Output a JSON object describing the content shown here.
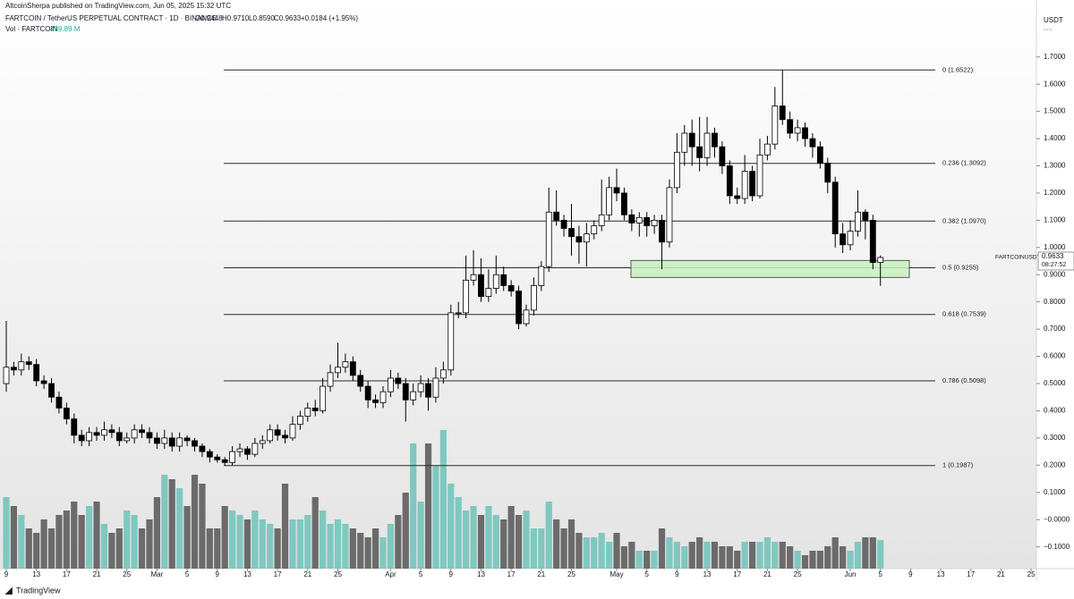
{
  "header": {
    "published": "AltcoinSherpa published on TradingView.com, Jun 05, 2025 15:32 UTC",
    "symbol": "FARTCOIN / TetherUS PERPETUAL CONTRACT · 1D · BINANCE",
    "ohlc": [
      "O0.9448",
      "H0.9710",
      "L0.8590",
      "C0.9633",
      "+0.0184 (+1.95%)"
    ],
    "vol_name": "Vol · FARTCOIN",
    "vol_value": "459.89 M",
    "currency": "USDT",
    "symbol_tag": "FARTCOINUSDT.P",
    "last_price": "0.9633",
    "countdown": "08:27:52",
    "footer": "TradingView"
  },
  "chart_data": {
    "type": "candlestick",
    "up_color": "#ffffff",
    "down_color": "#000000",
    "vol_up_color": "#7fc8c0",
    "vol_down_color": "#6b6b6b",
    "ylim": [
      -0.18,
      1.87
    ],
    "yticks": [
      {
        "value": 1.7,
        "label": "1.7000"
      },
      {
        "value": 1.6,
        "label": "1.6000"
      },
      {
        "value": 1.5,
        "label": "1.5000"
      },
      {
        "value": 1.4,
        "label": "1.4000"
      },
      {
        "value": 1.3,
        "label": "1.3000"
      },
      {
        "value": 1.2,
        "label": "1.2000"
      },
      {
        "value": 1.1,
        "label": "1.1000"
      },
      {
        "value": 1.0,
        "label": "1.0000"
      },
      {
        "value": 0.9,
        "label": "0.9000"
      },
      {
        "value": 0.8,
        "label": "0.8000"
      },
      {
        "value": 0.7,
        "label": "0.7000"
      },
      {
        "value": 0.6,
        "label": "0.6000"
      },
      {
        "value": 0.5,
        "label": "0.5000"
      },
      {
        "value": 0.4,
        "label": "0.4000"
      },
      {
        "value": 0.3,
        "label": "0.3000"
      },
      {
        "value": 0.2,
        "label": "0.2000"
      },
      {
        "value": 0.1,
        "label": "0.1000"
      },
      {
        "value": 0,
        "label": "−0.0000"
      },
      {
        "value": -0.1,
        "label": "−0.1000"
      }
    ],
    "xticks": [
      {
        "value": 0,
        "label": "9"
      },
      {
        "value": 4,
        "label": "13"
      },
      {
        "value": 8,
        "label": "17"
      },
      {
        "value": 12,
        "label": "21"
      },
      {
        "value": 16,
        "label": "25"
      },
      {
        "value": 20,
        "label": "Mar"
      },
      {
        "value": 24,
        "label": "5"
      },
      {
        "value": 28,
        "label": "9"
      },
      {
        "value": 32,
        "label": "13"
      },
      {
        "value": 36,
        "label": "17"
      },
      {
        "value": 40,
        "label": "21"
      },
      {
        "value": 44,
        "label": "25"
      },
      {
        "value": 51,
        "label": "Apr"
      },
      {
        "value": 55,
        "label": "5"
      },
      {
        "value": 59,
        "label": "9"
      },
      {
        "value": 63,
        "label": "13"
      },
      {
        "value": 67,
        "label": "17"
      },
      {
        "value": 71,
        "label": "21"
      },
      {
        "value": 75,
        "label": "25"
      },
      {
        "value": 81,
        "label": "May"
      },
      {
        "value": 85,
        "label": "5"
      },
      {
        "value": 89,
        "label": "9"
      },
      {
        "value": 93,
        "label": "13"
      },
      {
        "value": 97,
        "label": "17"
      },
      {
        "value": 101,
        "label": "21"
      },
      {
        "value": 105,
        "label": "25"
      },
      {
        "value": 112,
        "label": "Jun"
      },
      {
        "value": 116,
        "label": "5"
      },
      {
        "value": 120,
        "label": "9"
      },
      {
        "value": 124,
        "label": "13"
      },
      {
        "value": 128,
        "label": "17"
      },
      {
        "value": 132,
        "label": "21"
      },
      {
        "value": 136,
        "label": "25"
      }
    ],
    "fib_levels": [
      {
        "value": 1.6522,
        "label": "0 (1.6522)"
      },
      {
        "value": 1.3092,
        "label": "0.236 (1.3092)"
      },
      {
        "value": 1.097,
        "label": "0.382 (1.0970)"
      },
      {
        "value": 0.9255,
        "label": "0.5 (0.9255)"
      },
      {
        "value": 0.7539,
        "label": "0.618 (0.7539)"
      },
      {
        "value": 0.5098,
        "label": "0.786 (0.5098)"
      },
      {
        "value": 0.1987,
        "label": "1 (0.1987)"
      }
    ],
    "zone": [
      0.89,
      0.9525
    ],
    "open": [
      0.5,
      0.56,
      0.55,
      0.58,
      0.57,
      0.51,
      0.5,
      0.45,
      0.41,
      0.37,
      0.31,
      0.29,
      0.32,
      0.31,
      0.33,
      0.32,
      0.29,
      0.3,
      0.33,
      0.32,
      0.3,
      0.28,
      0.3,
      0.27,
      0.3,
      0.29,
      0.27,
      0.25,
      0.23,
      0.22,
      0.21,
      0.25,
      0.26,
      0.24,
      0.28,
      0.29,
      0.33,
      0.31,
      0.3,
      0.35,
      0.38,
      0.41,
      0.4,
      0.49,
      0.54,
      0.56,
      0.58,
      0.53,
      0.49,
      0.44,
      0.43,
      0.47,
      0.52,
      0.5,
      0.44,
      0.47,
      0.5,
      0.45,
      0.52,
      0.55,
      0.76,
      0.76,
      0.88,
      0.9,
      0.82,
      0.85,
      0.9,
      0.86,
      0.84,
      0.72,
      0.77,
      0.86,
      0.93,
      1.13,
      1.1,
      1.07,
      1.04,
      1.02,
      1.05,
      1.08,
      1.12,
      1.22,
      1.2,
      1.12,
      1.09,
      1.11,
      1.08,
      1.1,
      1.02,
      1.22,
      1.35,
      1.42,
      1.37,
      1.33,
      1.42,
      1.37,
      1.3,
      1.19,
      1.18,
      1.28,
      1.19,
      1.34,
      1.38,
      1.52,
      1.47,
      1.42,
      1.44,
      1.4,
      1.37,
      1.31,
      1.24,
      1.05,
      1.01,
      1.06,
      1.13,
      1.1,
      0.9448
    ],
    "high": [
      0.73,
      0.58,
      0.61,
      0.6,
      0.59,
      0.53,
      0.52,
      0.47,
      0.43,
      0.39,
      0.33,
      0.34,
      0.34,
      0.36,
      0.35,
      0.34,
      0.32,
      0.35,
      0.35,
      0.34,
      0.32,
      0.33,
      0.32,
      0.32,
      0.31,
      0.3,
      0.28,
      0.26,
      0.24,
      0.23,
      0.27,
      0.28,
      0.27,
      0.3,
      0.31,
      0.35,
      0.35,
      0.33,
      0.38,
      0.4,
      0.43,
      0.44,
      0.52,
      0.57,
      0.65,
      0.61,
      0.6,
      0.55,
      0.51,
      0.46,
      0.49,
      0.55,
      0.54,
      0.52,
      0.5,
      0.53,
      0.52,
      0.56,
      0.58,
      0.79,
      0.8,
      0.97,
      0.99,
      0.96,
      0.92,
      0.97,
      0.93,
      0.88,
      0.86,
      0.79,
      0.89,
      0.95,
      1.22,
      1.21,
      1.12,
      1.16,
      1.08,
      1.09,
      1.1,
      1.25,
      1.26,
      1.29,
      1.22,
      1.14,
      1.13,
      1.13,
      1.12,
      1.12,
      1.25,
      1.42,
      1.45,
      1.47,
      1.48,
      1.48,
      1.44,
      1.39,
      1.32,
      1.22,
      1.34,
      1.3,
      1.4,
      1.41,
      1.59,
      1.6522,
      1.5,
      1.47,
      1.46,
      1.42,
      1.39,
      1.33,
      1.26,
      1.09,
      1.1,
      1.21,
      1.14,
      1.12,
      0.971
    ],
    "low": [
      0.47,
      0.53,
      0.53,
      0.55,
      0.49,
      0.48,
      0.43,
      0.39,
      0.35,
      0.28,
      0.27,
      0.27,
      0.29,
      0.29,
      0.3,
      0.27,
      0.28,
      0.28,
      0.3,
      0.28,
      0.26,
      0.26,
      0.25,
      0.25,
      0.27,
      0.25,
      0.23,
      0.21,
      0.21,
      0.1987,
      0.2,
      0.23,
      0.22,
      0.23,
      0.26,
      0.28,
      0.29,
      0.28,
      0.29,
      0.33,
      0.36,
      0.38,
      0.39,
      0.47,
      0.52,
      0.54,
      0.51,
      0.47,
      0.41,
      0.41,
      0.41,
      0.45,
      0.48,
      0.36,
      0.42,
      0.45,
      0.4,
      0.43,
      0.5,
      0.53,
      0.74,
      0.74,
      0.86,
      0.8,
      0.8,
      0.83,
      0.84,
      0.82,
      0.7,
      0.71,
      0.75,
      0.84,
      0.91,
      1.08,
      1.04,
      0.97,
      0.94,
      0.93,
      1.03,
      1.06,
      1.1,
      1.17,
      1.1,
      1.06,
      1.04,
      1.04,
      1.05,
      0.92,
      1.0,
      1.2,
      1.3,
      1.3,
      1.28,
      1.3,
      1.33,
      1.27,
      1.16,
      1.16,
      1.16,
      1.17,
      1.18,
      1.32,
      1.36,
      1.45,
      1.4,
      1.39,
      1.37,
      1.33,
      1.29,
      1.2,
      1.0,
      0.98,
      0.99,
      1.04,
      1.03,
      0.92,
      0.859
    ],
    "close": [
      0.56,
      0.55,
      0.58,
      0.57,
      0.51,
      0.5,
      0.45,
      0.41,
      0.37,
      0.31,
      0.29,
      0.32,
      0.31,
      0.33,
      0.32,
      0.29,
      0.3,
      0.33,
      0.32,
      0.3,
      0.28,
      0.3,
      0.27,
      0.3,
      0.29,
      0.27,
      0.25,
      0.23,
      0.22,
      0.21,
      0.25,
      0.26,
      0.24,
      0.28,
      0.29,
      0.33,
      0.31,
      0.3,
      0.35,
      0.38,
      0.41,
      0.4,
      0.49,
      0.54,
      0.56,
      0.58,
      0.53,
      0.49,
      0.44,
      0.43,
      0.47,
      0.52,
      0.5,
      0.44,
      0.47,
      0.5,
      0.45,
      0.52,
      0.55,
      0.76,
      0.76,
      0.88,
      0.9,
      0.82,
      0.85,
      0.9,
      0.86,
      0.84,
      0.72,
      0.77,
      0.86,
      0.93,
      1.13,
      1.1,
      1.07,
      1.04,
      1.02,
      1.05,
      1.08,
      1.12,
      1.22,
      1.2,
      1.12,
      1.09,
      1.11,
      1.08,
      1.1,
      1.02,
      1.22,
      1.35,
      1.42,
      1.37,
      1.33,
      1.42,
      1.37,
      1.3,
      1.19,
      1.18,
      1.28,
      1.19,
      1.34,
      1.38,
      1.52,
      1.47,
      1.42,
      1.44,
      1.4,
      1.37,
      1.31,
      1.24,
      1.05,
      1.01,
      1.06,
      1.13,
      1.1,
      0.9448,
      0.9633
    ],
    "volume": [
      1152,
      1008,
      864,
      648,
      576,
      792,
      648,
      864,
      936,
      1080,
      864,
      1008,
      1080,
      720,
      576,
      648,
      936,
      864,
      648,
      792,
      1152,
      1512,
      1440,
      1296,
      1008,
      1512,
      1368,
      648,
      648,
      1008,
      936,
      864,
      792,
      936,
      792,
      720,
      648,
      1368,
      792,
      792,
      864,
      1152,
      936,
      720,
      792,
      720,
      648,
      576,
      504,
      648,
      504,
      720,
      864,
      1224,
      2016,
      1080,
      2016,
      1656,
      2232,
      1368,
      1152,
      936,
      1008,
      864,
      1008,
      864,
      792,
      1008,
      864,
      936,
      648,
      648,
      1080,
      792,
      648,
      792,
      576,
      504,
      504,
      576,
      432,
      576,
      360,
      432,
      288,
      288,
      288,
      648,
      504,
      432,
      360,
      432,
      504,
      432,
      432,
      360,
      360,
      288,
      432,
      432,
      432,
      504,
      432,
      432,
      360,
      288,
      216,
      288,
      288,
      360,
      504,
      360,
      288,
      432,
      504,
      504,
      459.89
    ]
  }
}
